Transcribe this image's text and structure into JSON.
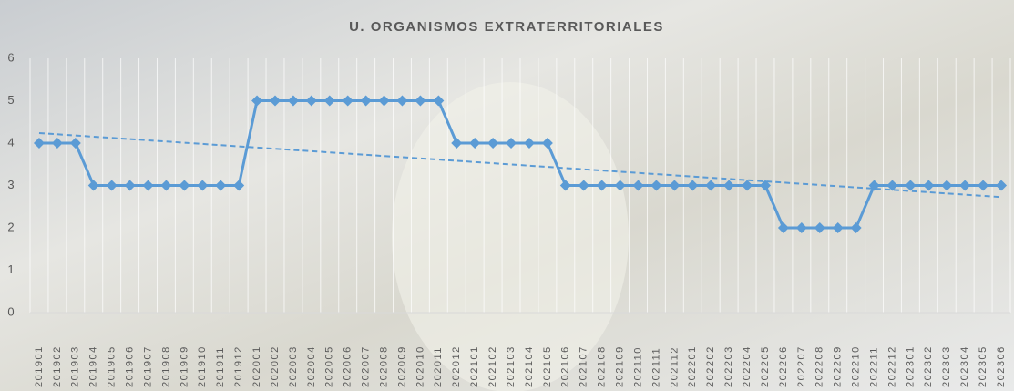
{
  "chart_data": {
    "type": "line",
    "title": "U. ORGANISMOS EXTRATERRITORIALES",
    "categories": [
      "201901",
      "201902",
      "201903",
      "201904",
      "201905",
      "201906",
      "201907",
      "201908",
      "201909",
      "201910",
      "201911",
      "201912",
      "202001",
      "202002",
      "202003",
      "202004",
      "202005",
      "202006",
      "202007",
      "202008",
      "202009",
      "202010",
      "202011",
      "202012",
      "202101",
      "202102",
      "202103",
      "202104",
      "202105",
      "202106",
      "202107",
      "202108",
      "202109",
      "202110",
      "202111",
      "202112",
      "202201",
      "202202",
      "202203",
      "202204",
      "202205",
      "202206",
      "202207",
      "202208",
      "202209",
      "202210",
      "202211",
      "202212",
      "202301",
      "202302",
      "202303",
      "202304",
      "202305",
      "202306"
    ],
    "values": [
      4,
      4,
      4,
      3,
      3,
      3,
      3,
      3,
      3,
      3,
      3,
      3,
      5,
      5,
      5,
      5,
      5,
      5,
      5,
      5,
      5,
      5,
      5,
      4,
      4,
      4,
      4,
      4,
      4,
      3,
      3,
      3,
      3,
      3,
      3,
      3,
      3,
      3,
      3,
      3,
      3,
      2,
      2,
      2,
      2,
      2,
      3,
      3,
      3,
      3,
      3,
      3,
      3,
      3
    ],
    "color": "#5b9bd5",
    "marker": "diamond",
    "trendline": "linear",
    "ylim": [
      0,
      6
    ],
    "yticks": [
      0,
      1,
      2,
      3,
      4,
      5,
      6
    ],
    "grid": "vertical"
  }
}
